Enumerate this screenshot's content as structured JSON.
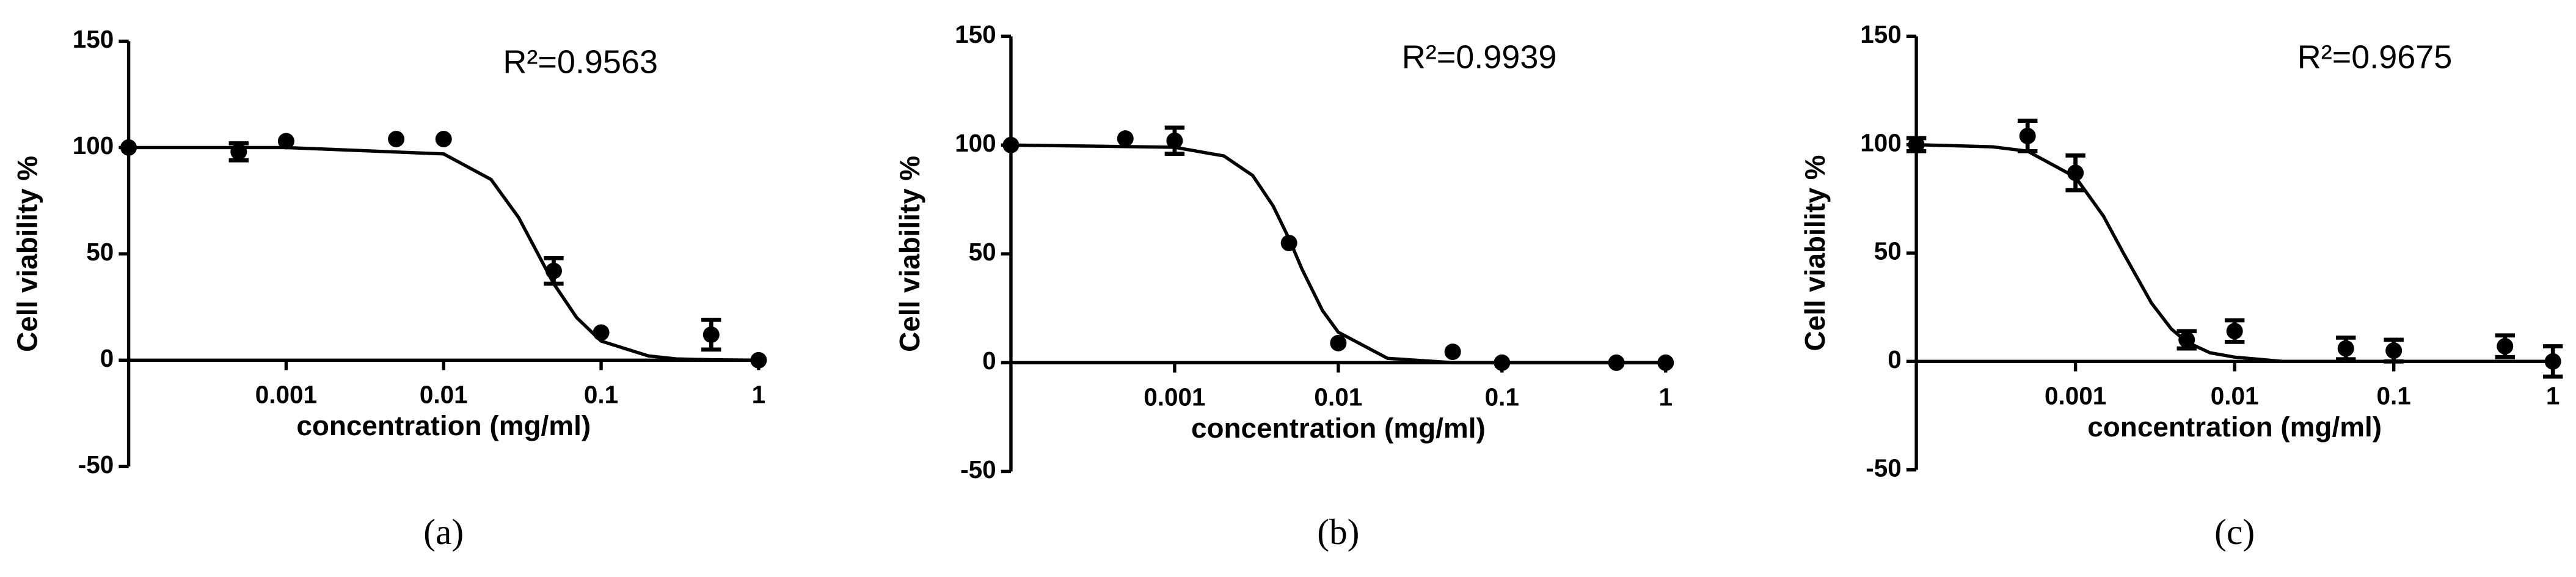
{
  "chart_data": [
    {
      "type": "scatter",
      "annotation": "R²=0.9563",
      "caption": "(a)",
      "xlabel": "concentration (mg/ml)",
      "ylabel": "Cell viability %",
      "x": [
        0.0001,
        0.0005,
        0.001,
        0.005,
        0.01,
        0.05,
        0.1,
        0.5,
        1
      ],
      "values": [
        100,
        98,
        103,
        104,
        104,
        42,
        13,
        12,
        0
      ],
      "errors": [
        null,
        4,
        null,
        null,
        null,
        6,
        null,
        7,
        null
      ],
      "fit": {
        "x": [
          0.0001,
          0.001,
          0.01,
          0.02,
          0.03,
          0.05,
          0.07,
          0.1,
          0.2,
          0.3,
          0.5,
          1
        ],
        "values": [
          100,
          100,
          97,
          85,
          67,
          36,
          20,
          9,
          2,
          0.6,
          0.2,
          0
        ]
      },
      "xscale": "log",
      "xlim": [
        0.0001,
        1
      ],
      "ylim": [
        -50,
        150
      ],
      "xticks": [
        0.001,
        0.01,
        0.1,
        1
      ],
      "yticks": [
        -50,
        0,
        50,
        100,
        150
      ],
      "color": "#000000"
    },
    {
      "type": "scatter",
      "annotation": "R²=0.9939",
      "caption": "(b)",
      "xlabel": "concentration (mg/ml)",
      "ylabel": "Cell viability %",
      "x": [
        0.0001,
        0.0005,
        0.001,
        0.005,
        0.01,
        0.05,
        0.1,
        0.5,
        1
      ],
      "values": [
        100,
        103,
        102,
        55,
        9,
        5,
        0,
        0,
        0
      ],
      "errors": [
        null,
        null,
        6,
        null,
        null,
        null,
        null,
        null,
        null
      ],
      "fit": {
        "x": [
          0.0001,
          0.001,
          0.002,
          0.003,
          0.004,
          0.005,
          0.006,
          0.008,
          0.01,
          0.02,
          0.05,
          1
        ],
        "values": [
          100,
          99,
          95,
          86,
          72,
          57,
          43,
          24,
          14,
          2,
          0,
          0
        ]
      },
      "xscale": "log",
      "xlim": [
        0.0001,
        1
      ],
      "ylim": [
        -50,
        150
      ],
      "xticks": [
        0.001,
        0.01,
        0.1,
        1
      ],
      "yticks": [
        -50,
        0,
        50,
        100,
        150
      ],
      "color": "#000000"
    },
    {
      "type": "scatter",
      "annotation": "R²=0.9675",
      "caption": "(c)",
      "xlabel": "concentration (mg/ml)",
      "ylabel": "Cell viability %",
      "x": [
        0.0001,
        0.0005,
        0.001,
        0.005,
        0.01,
        0.05,
        0.1,
        0.5,
        1
      ],
      "values": [
        100,
        104,
        87,
        10,
        14,
        6,
        5,
        7,
        0
      ],
      "errors": [
        3,
        7,
        8,
        4,
        5,
        5,
        5,
        5,
        7
      ],
      "fit": {
        "x": [
          0.0001,
          0.0003,
          0.0005,
          0.001,
          0.0015,
          0.002,
          0.003,
          0.004,
          0.005,
          0.007,
          0.01,
          0.02,
          1
        ],
        "values": [
          100,
          99,
          97,
          85,
          67,
          50,
          27,
          15,
          9,
          4,
          2,
          0,
          0
        ]
      },
      "xscale": "log",
      "xlim": [
        0.0001,
        1
      ],
      "ylim": [
        -50,
        150
      ],
      "xticks": [
        0.001,
        0.01,
        0.1,
        1
      ],
      "yticks": [
        -50,
        0,
        50,
        100,
        150
      ],
      "color": "#000000"
    }
  ]
}
